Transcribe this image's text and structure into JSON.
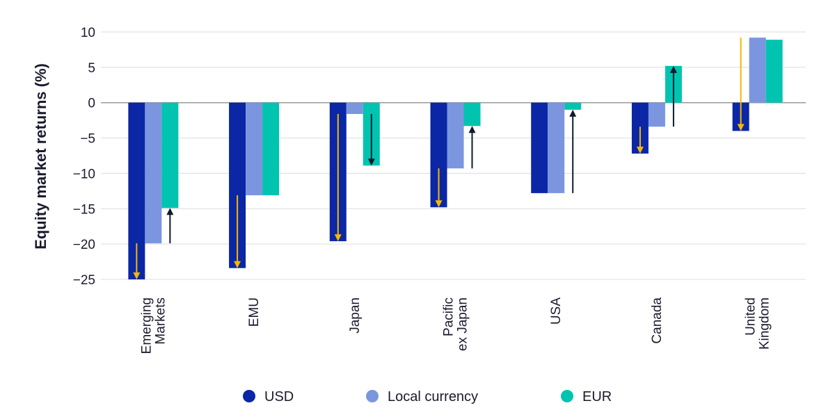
{
  "chart_data": {
    "type": "bar",
    "title": "",
    "xlabel": "",
    "ylabel": "Equity market returns (%)",
    "ylim": [
      -25,
      10
    ],
    "yticks": [
      10,
      5,
      0,
      -5,
      -10,
      -15,
      -20,
      -25
    ],
    "ytick_labels": [
      "10",
      "5",
      "0",
      "−5",
      "−10",
      "−15",
      "−20",
      "−25"
    ],
    "grid": true,
    "legend_position": "bottom",
    "categories": [
      [
        "Emerging",
        "Markets"
      ],
      [
        "EMU"
      ],
      [
        "Japan"
      ],
      [
        "Pacific",
        "ex Japan"
      ],
      [
        "USA"
      ],
      [
        "Canada"
      ],
      [
        "United",
        "Kingdom"
      ]
    ],
    "series": [
      {
        "name": "USD",
        "color": "#0b27a5",
        "values": [
          -25.0,
          -23.4,
          -19.6,
          -14.8,
          -12.8,
          -7.2,
          -4.0
        ]
      },
      {
        "name": "Local currency",
        "color": "#7b96df",
        "values": [
          -19.9,
          -13.1,
          -1.6,
          -9.3,
          -12.8,
          -3.4,
          9.2
        ]
      },
      {
        "name": "EUR",
        "color": "#00c4b0",
        "values": [
          -14.9,
          -13.1,
          -8.9,
          -3.3,
          -1.0,
          5.2,
          8.9
        ]
      }
    ],
    "arrows": {
      "usd_color": "#f5b800",
      "eur_color": "#0d1b2a"
    }
  }
}
